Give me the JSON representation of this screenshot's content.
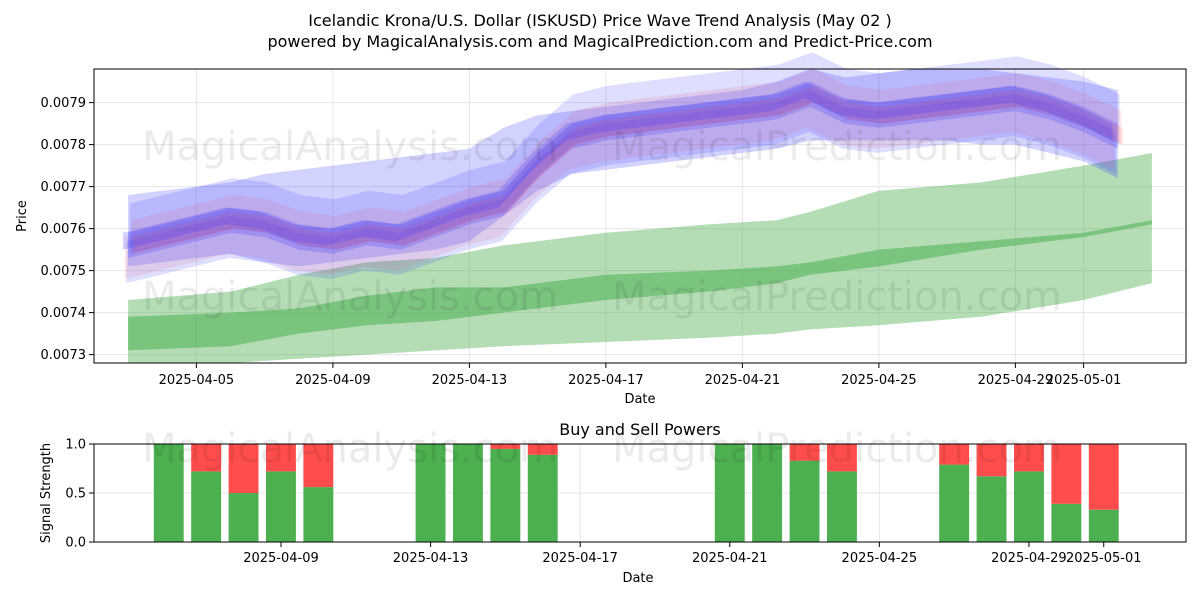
{
  "header": {
    "title": "Icelandic Krona/U.S. Dollar (ISKUSD) Price Wave Trend Analysis (May 02 )",
    "subtitle": "powered by MagicalAnalysis.com and MagicalPrediction.com and Predict-Price.com"
  },
  "watermarks": [
    "MagicalAnalysis.com",
    "MagicalPrediction.com"
  ],
  "colors": {
    "blue_wave": "#3333ff",
    "red_wave": "#ff6666",
    "green_band": "#4caf50",
    "buy": "#4caf50",
    "sell": "#ff4d4d",
    "grid": "#e6e6e6"
  },
  "chart_data": [
    {
      "type": "area",
      "title": "",
      "xlabel": "Date",
      "ylabel": "Price",
      "xlim_days": [
        -1.0,
        31.0
      ],
      "ylim": [
        0.00728,
        0.00798
      ],
      "x_ticks": [
        {
          "day": 2,
          "label": "2025-04-05"
        },
        {
          "day": 6,
          "label": "2025-04-09"
        },
        {
          "day": 10,
          "label": "2025-04-13"
        },
        {
          "day": 14,
          "label": "2025-04-17"
        },
        {
          "day": 18,
          "label": "2025-04-21"
        },
        {
          "day": 22,
          "label": "2025-04-25"
        },
        {
          "day": 26,
          "label": "2025-04-29"
        },
        {
          "day": 28,
          "label": "2025-05-01"
        }
      ],
      "y_ticks": [
        0.0073,
        0.0074,
        0.0075,
        0.0076,
        0.0077,
        0.0078,
        0.0079
      ],
      "y_tick_labels": [
        "0.0073",
        "0.0074",
        "0.0075",
        "0.0076",
        "0.0077",
        "0.0078",
        "0.0079"
      ],
      "price_wave_days": [
        0,
        1,
        2,
        3,
        4,
        5,
        6,
        7,
        8,
        9,
        10,
        11,
        12,
        13,
        14,
        15,
        16,
        17,
        18,
        19,
        20,
        21,
        22,
        23,
        24,
        25,
        26,
        27,
        28,
        29
      ],
      "price_wave_center": [
        0.00756,
        0.00758,
        0.0076,
        0.00762,
        0.00761,
        0.00758,
        0.00757,
        0.00759,
        0.00758,
        0.00761,
        0.00764,
        0.00766,
        0.00775,
        0.00782,
        0.00784,
        0.00785,
        0.00786,
        0.00787,
        0.00788,
        0.00789,
        0.00792,
        0.00788,
        0.00787,
        0.00788,
        0.00789,
        0.0079,
        0.00791,
        0.00789,
        0.00786,
        0.00782
      ],
      "wave_envelope_upper": [
        0.00768,
        0.00769,
        0.0077,
        0.00771,
        0.00773,
        0.00774,
        0.00775,
        0.00776,
        0.00777,
        0.00778,
        0.00779,
        0.00784,
        0.00787,
        0.00788,
        0.00789,
        0.0079,
        0.00791,
        0.00792,
        0.00793,
        0.00795,
        0.00798,
        0.00796,
        0.00797,
        0.00798,
        0.00798,
        0.00798,
        0.00797,
        0.00796,
        0.00795,
        0.00793
      ],
      "wave_envelope_lower": [
        0.00751,
        0.00752,
        0.00753,
        0.00754,
        0.00752,
        0.00751,
        0.00752,
        0.00753,
        0.00754,
        0.00755,
        0.00757,
        0.00763,
        0.00769,
        0.00773,
        0.00774,
        0.00775,
        0.00776,
        0.00777,
        0.00778,
        0.00779,
        0.00781,
        0.00781,
        0.00781,
        0.00781,
        0.00781,
        0.0078,
        0.0078,
        0.00778,
        0.00776,
        0.00772
      ],
      "forecast_days": [
        0,
        3,
        5,
        7,
        9,
        11,
        14,
        17,
        19,
        20,
        22,
        25,
        28,
        30
      ],
      "forecast_mid_upper": [
        0.00739,
        0.0074,
        0.00741,
        0.00744,
        0.00746,
        0.00746,
        0.00749,
        0.0075,
        0.00751,
        0.00752,
        0.00755,
        0.00757,
        0.00759,
        0.00762
      ],
      "forecast_mid_lower": [
        0.00731,
        0.00732,
        0.00735,
        0.00737,
        0.00738,
        0.0074,
        0.00743,
        0.00745,
        0.00747,
        0.00749,
        0.00751,
        0.00755,
        0.00758,
        0.00761
      ],
      "forecast_outer_upper": [
        0.00743,
        0.00745,
        0.00749,
        0.00752,
        0.00753,
        0.00756,
        0.00759,
        0.00761,
        0.00762,
        0.00764,
        0.00769,
        0.00771,
        0.00775,
        0.00778
      ],
      "forecast_outer_lower": [
        0.00728,
        0.00728,
        0.00729,
        0.0073,
        0.00731,
        0.00732,
        0.00733,
        0.00734,
        0.00735,
        0.00736,
        0.00737,
        0.00739,
        0.00743,
        0.00747
      ]
    },
    {
      "type": "bar",
      "title": "Buy and Sell Powers",
      "xlabel": "Date",
      "ylabel": "Signal Strength",
      "xlim_days": [
        1.0,
        30.2
      ],
      "ylim": [
        0.0,
        1.0
      ],
      "x_ticks": [
        {
          "day": 6,
          "label": "2025-04-09"
        },
        {
          "day": 10,
          "label": "2025-04-13"
        },
        {
          "day": 14,
          "label": "2025-04-17"
        },
        {
          "day": 18,
          "label": "2025-04-21"
        },
        {
          "day": 22,
          "label": "2025-04-25"
        },
        {
          "day": 26,
          "label": "2025-04-29"
        },
        {
          "day": 28,
          "label": "2025-05-01"
        }
      ],
      "y_ticks": [
        0.0,
        0.5,
        1.0
      ],
      "y_tick_labels": [
        "0.0",
        "0.5",
        "1.0"
      ],
      "days": [
        3,
        4,
        5,
        6,
        7,
        10,
        11,
        12,
        13,
        18,
        19,
        20,
        21,
        24,
        25,
        26,
        27,
        28
      ],
      "series": [
        {
          "name": "Buy",
          "values": [
            1.0,
            0.72,
            0.5,
            0.72,
            0.56,
            1.0,
            1.0,
            0.95,
            0.89,
            1.0,
            1.0,
            0.83,
            0.72,
            0.79,
            0.67,
            0.72,
            0.39,
            0.33
          ]
        },
        {
          "name": "Sell",
          "values": [
            0.0,
            0.28,
            0.5,
            0.28,
            0.44,
            0.0,
            0.0,
            0.05,
            0.11,
            0.0,
            0.0,
            0.17,
            0.28,
            0.21,
            0.33,
            0.28,
            0.61,
            0.67
          ]
        }
      ]
    }
  ]
}
